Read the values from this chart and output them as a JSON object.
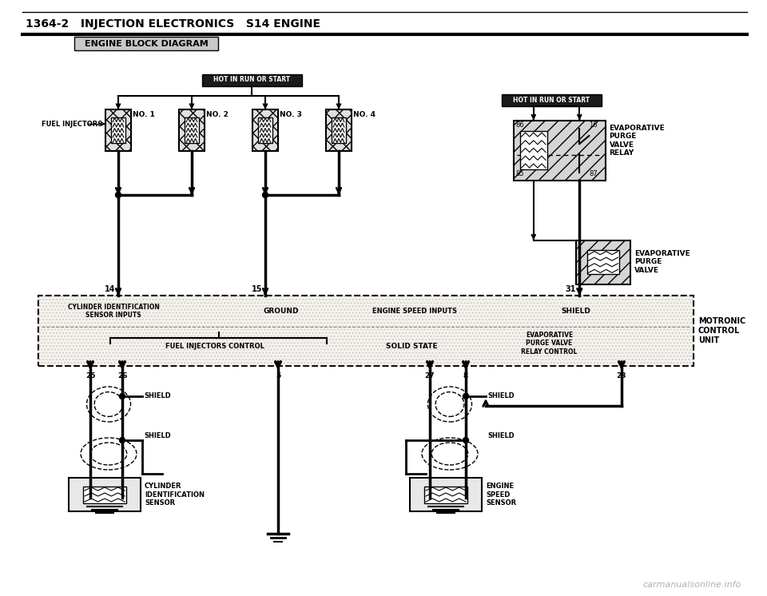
{
  "title_line": "1364-2   INJECTION ELECTRONICS   S14 ENGINE",
  "subtitle": "ENGINE BLOCK DIAGRAM",
  "bg_color": "#ffffff",
  "text_color": "#000000",
  "watermark": "carmanualsonline.info",
  "page_width": 9.6,
  "page_height": 7.46
}
